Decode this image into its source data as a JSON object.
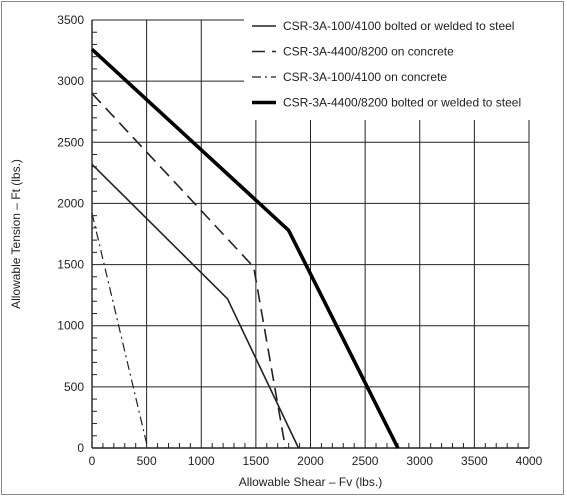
{
  "chart_data": {
    "type": "line",
    "title": "",
    "xlabel": "Allowable Shear – Fv (lbs.)",
    "ylabel": "Allowable Tension – Ft (lbs.)",
    "xlim": [
      0,
      4000
    ],
    "ylim": [
      0,
      3500
    ],
    "x_ticks": [
      0,
      500,
      1000,
      1500,
      2000,
      2500,
      3000,
      3500,
      4000
    ],
    "y_ticks": [
      0,
      500,
      1000,
      1500,
      2000,
      2500,
      3000,
      3500
    ],
    "x_tick_labels": [
      "0",
      "500",
      "1000",
      "1500",
      "2000",
      "2500",
      "3000",
      "3500",
      "4000"
    ],
    "y_tick_labels": [
      "0",
      "500",
      "1000",
      "1500",
      "2000",
      "2500",
      "3000",
      "3500"
    ],
    "grid": true,
    "legend_position": "top-right",
    "series": [
      {
        "name": "CSR-3A-100/4100 bolted or welded to steel",
        "style": "solid-thin",
        "color": "#222222",
        "points": [
          [
            0,
            2320
          ],
          [
            1240,
            1220
          ],
          [
            1890,
            0
          ]
        ]
      },
      {
        "name": "CSR-3A-4400/8200 on concrete",
        "style": "dashed",
        "color": "#222222",
        "points": [
          [
            0,
            2900
          ],
          [
            1480,
            1480
          ],
          [
            1770,
            0
          ]
        ]
      },
      {
        "name": "CSR-3A-100/4100 on concrete",
        "style": "dash-dot",
        "color": "#222222",
        "points": [
          [
            0,
            1920
          ],
          [
            510,
            0
          ]
        ]
      },
      {
        "name": "CSR-3A-4400/8200 bolted or welded to steel",
        "style": "solid-thick",
        "color": "#000000",
        "points": [
          [
            0,
            3260
          ],
          [
            1800,
            1780
          ],
          [
            2800,
            0
          ]
        ]
      }
    ]
  }
}
